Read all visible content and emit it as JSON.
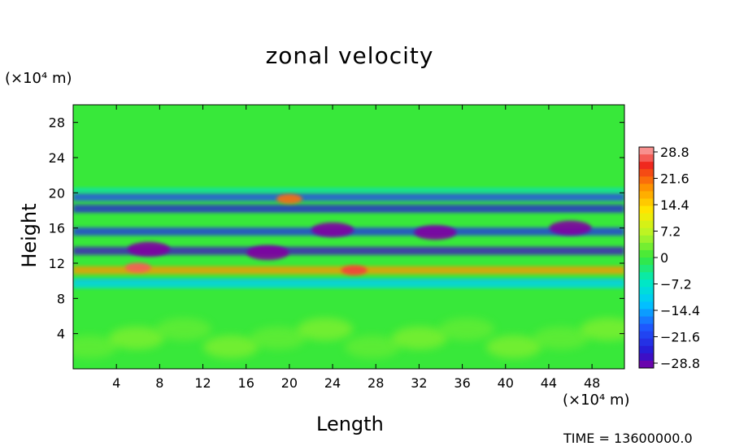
{
  "chart_data": {
    "type": "heatmap",
    "title": "zonal velocity",
    "xlabel": "Length",
    "ylabel": "Height",
    "x_unit": "(×10⁴ m)",
    "y_unit": "(×10⁴ m)",
    "xlim": [
      0,
      51
    ],
    "ylim": [
      0,
      30
    ],
    "x_ticks": [
      4,
      8,
      12,
      16,
      20,
      24,
      28,
      32,
      36,
      40,
      44,
      48
    ],
    "y_ticks": [
      4,
      8,
      12,
      16,
      20,
      24,
      28
    ],
    "colorbar": {
      "labels": [
        "28.8",
        "21.6",
        "14.4",
        "7.2",
        "0",
        "−7.2",
        "−14.4",
        "−21.6",
        "−28.8"
      ],
      "min": -28.8,
      "max": 28.8
    },
    "footer": "TIME = 13600000.0",
    "bands": [
      {
        "height": 19.5,
        "value": -20
      },
      {
        "height": 18.2,
        "value": -24
      },
      {
        "height": 15.6,
        "value": -22
      },
      {
        "height": 13.4,
        "value": -26
      },
      {
        "height": 11.2,
        "value": 18
      },
      {
        "height": 9.8,
        "value": -12
      }
    ],
    "features": [
      {
        "x": 7,
        "y": 13.6,
        "value": -30
      },
      {
        "x": 18,
        "y": 13.2,
        "value": -30
      },
      {
        "x": 24,
        "y": 15.8,
        "value": -29
      },
      {
        "x": 33.5,
        "y": 15.5,
        "value": -29
      },
      {
        "x": 46,
        "y": 16,
        "value": -29
      },
      {
        "x": 26,
        "y": 11.2,
        "value": 25
      },
      {
        "x": 6,
        "y": 11.5,
        "value": 26
      },
      {
        "x": 20,
        "y": 19.3,
        "value": 20
      }
    ]
  }
}
